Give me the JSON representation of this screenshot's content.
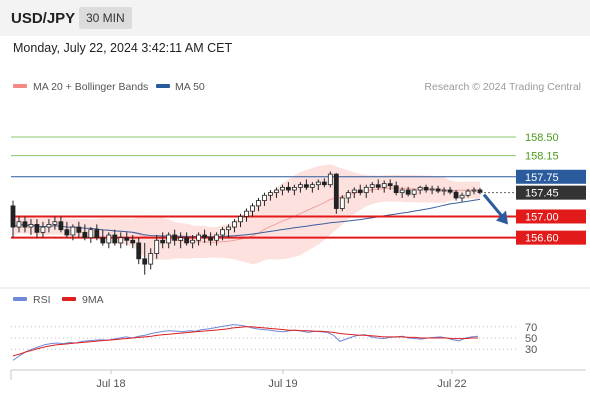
{
  "header": {
    "pair": "USD/JPY",
    "timeframe": "30 MIN"
  },
  "datetime": "Monday, July 22, 2024 3:42:11 AM CET",
  "legend": [
    {
      "label": "MA 20 + Bollinger Bands",
      "color": "#f28a82"
    },
    {
      "label": "MA 50",
      "color": "#2a5b9c"
    }
  ],
  "copyright": "Research © 2024 Trading Central",
  "colors": {
    "bollinger_fill": "#fde1df",
    "ma20": "#f0a29c",
    "ma50": "#3a5f9b",
    "target_line": "#8cc76a",
    "target_text": "#4f9a1e",
    "pivot": "#2a5b9c",
    "support": "#e21a1a",
    "arrow": "#2a5b9c",
    "candle": "#222222",
    "rsi": "#6f88d8",
    "rsi_ma": "#dd1f1f",
    "current_price_bg": "#333333"
  },
  "chart_data": [
    {
      "type": "candlestick",
      "title": "USD/JPY",
      "timeframe": "30 MIN",
      "ylim": [
        155.8,
        159.2
      ],
      "x_ticks": [
        "Jul 18",
        "Jul 19",
        "Jul 22"
      ],
      "current_price": "157.45",
      "levels": [
        {
          "name": "target2",
          "value": 158.5,
          "label": "158.50",
          "kind": "resistance"
        },
        {
          "name": "target1",
          "value": 158.15,
          "label": "158.15",
          "kind": "resistance"
        },
        {
          "name": "pivot",
          "value": 157.75,
          "label": "157.75",
          "kind": "pivot"
        },
        {
          "name": "support1",
          "value": 157.0,
          "label": "157.00",
          "kind": "support"
        },
        {
          "name": "support2",
          "value": 156.6,
          "label": "156.60",
          "kind": "support"
        }
      ],
      "series": [
        {
          "name": "MA 20 + Bollinger Bands"
        },
        {
          "name": "MA 50"
        }
      ],
      "ohlc": [
        [
          157.2,
          157.3,
          156.6,
          156.8
        ],
        [
          156.8,
          157.0,
          156.7,
          156.9
        ],
        [
          156.9,
          157.0,
          156.7,
          156.8
        ],
        [
          156.8,
          156.95,
          156.65,
          156.85
        ],
        [
          156.85,
          156.95,
          156.6,
          156.7
        ],
        [
          156.7,
          156.9,
          156.6,
          156.8
        ],
        [
          156.8,
          156.95,
          156.7,
          156.85
        ],
        [
          156.85,
          157.0,
          156.75,
          156.9
        ],
        [
          156.9,
          157.0,
          156.7,
          156.75
        ],
        [
          156.75,
          156.9,
          156.6,
          156.65
        ],
        [
          156.65,
          156.85,
          156.55,
          156.8
        ],
        [
          156.8,
          156.9,
          156.6,
          156.7
        ],
        [
          156.7,
          156.85,
          156.55,
          156.6
        ],
        [
          156.6,
          156.8,
          156.5,
          156.75
        ],
        [
          156.75,
          156.85,
          156.55,
          156.6
        ],
        [
          156.6,
          156.75,
          156.45,
          156.5
        ],
        [
          156.5,
          156.7,
          156.4,
          156.65
        ],
        [
          156.65,
          156.75,
          156.45,
          156.5
        ],
        [
          156.5,
          156.7,
          156.4,
          156.6
        ],
        [
          156.6,
          156.7,
          156.45,
          156.55
        ],
        [
          156.55,
          156.65,
          156.4,
          156.5
        ],
        [
          156.5,
          156.6,
          156.1,
          156.2
        ],
        [
          156.2,
          156.5,
          155.9,
          156.1
        ],
        [
          156.1,
          156.4,
          156.0,
          156.3
        ],
        [
          156.3,
          156.65,
          156.2,
          156.55
        ],
        [
          156.55,
          156.7,
          156.4,
          156.5
        ],
        [
          156.5,
          156.7,
          156.4,
          156.65
        ],
        [
          156.65,
          156.75,
          156.45,
          156.55
        ],
        [
          156.55,
          156.7,
          156.4,
          156.6
        ],
        [
          156.6,
          156.7,
          156.45,
          156.5
        ],
        [
          156.5,
          156.65,
          156.4,
          156.55
        ],
        [
          156.55,
          156.7,
          156.45,
          156.65
        ],
        [
          156.65,
          156.75,
          156.5,
          156.6
        ],
        [
          156.6,
          156.7,
          156.45,
          156.55
        ],
        [
          156.55,
          156.7,
          156.45,
          156.65
        ],
        [
          156.65,
          156.8,
          156.55,
          156.75
        ],
        [
          156.75,
          156.85,
          156.6,
          156.8
        ],
        [
          156.8,
          156.95,
          156.7,
          156.9
        ],
        [
          156.9,
          157.05,
          156.8,
          157.0
        ],
        [
          157.0,
          157.15,
          156.9,
          157.1
        ],
        [
          157.1,
          157.25,
          157.0,
          157.2
        ],
        [
          157.2,
          157.35,
          157.1,
          157.3
        ],
        [
          157.3,
          157.45,
          157.2,
          157.4
        ],
        [
          157.4,
          157.5,
          157.3,
          157.45
        ],
        [
          157.45,
          157.55,
          157.35,
          157.5
        ],
        [
          157.5,
          157.6,
          157.4,
          157.55
        ],
        [
          157.55,
          157.65,
          157.45,
          157.5
        ],
        [
          157.5,
          157.6,
          157.4,
          157.55
        ],
        [
          157.55,
          157.65,
          157.45,
          157.6
        ],
        [
          157.6,
          157.7,
          157.5,
          157.55
        ],
        [
          157.55,
          157.65,
          157.45,
          157.6
        ],
        [
          157.6,
          157.7,
          157.5,
          157.65
        ],
        [
          157.65,
          157.72,
          157.55,
          157.6
        ],
        [
          157.6,
          157.85,
          157.55,
          157.8
        ],
        [
          157.8,
          157.82,
          157.05,
          157.15
        ],
        [
          157.15,
          157.4,
          157.1,
          157.35
        ],
        [
          157.35,
          157.5,
          157.25,
          157.45
        ],
        [
          157.45,
          157.55,
          157.35,
          157.5
        ],
        [
          157.5,
          157.6,
          157.4,
          157.45
        ],
        [
          157.45,
          157.6,
          157.35,
          157.55
        ],
        [
          157.55,
          157.65,
          157.45,
          157.6
        ],
        [
          157.6,
          157.7,
          157.5,
          157.55
        ],
        [
          157.55,
          157.68,
          157.45,
          157.62
        ],
        [
          157.62,
          157.7,
          157.5,
          157.58
        ],
        [
          157.58,
          157.66,
          157.4,
          157.45
        ],
        [
          157.45,
          157.55,
          157.35,
          157.5
        ],
        [
          157.5,
          157.56,
          157.38,
          157.42
        ],
        [
          157.42,
          157.52,
          157.35,
          157.5
        ],
        [
          157.5,
          157.58,
          157.42,
          157.55
        ],
        [
          157.55,
          157.6,
          157.45,
          157.5
        ],
        [
          157.5,
          157.58,
          157.42,
          157.52
        ],
        [
          157.52,
          157.58,
          157.44,
          157.48
        ],
        [
          157.48,
          157.55,
          157.4,
          157.5
        ],
        [
          157.5,
          157.56,
          157.42,
          157.46
        ],
        [
          157.46,
          157.5,
          157.3,
          157.35
        ],
        [
          157.35,
          157.45,
          157.28,
          157.4
        ],
        [
          157.4,
          157.52,
          157.36,
          157.48
        ],
        [
          157.48,
          157.55,
          157.42,
          157.5
        ],
        [
          157.5,
          157.54,
          157.42,
          157.45
        ]
      ]
    },
    {
      "type": "line",
      "title": "RSI",
      "ylim": [
        0,
        100
      ],
      "y_ticks": [
        70,
        50,
        30
      ],
      "series": [
        {
          "name": "RSI",
          "values": [
            10,
            18,
            25,
            30,
            34,
            38,
            40,
            41,
            40,
            42,
            41,
            44,
            45,
            46,
            47,
            46,
            48,
            50,
            52,
            50,
            53,
            55,
            58,
            60,
            62,
            63,
            62,
            61,
            63,
            62,
            65,
            66,
            68,
            70,
            72,
            74,
            73,
            71,
            68,
            66,
            65,
            64,
            62,
            61,
            63,
            64,
            62,
            60,
            62,
            61,
            60,
            55,
            44,
            48,
            52,
            55,
            56,
            52,
            50,
            49,
            51,
            52,
            53,
            50,
            49,
            48,
            50,
            51,
            52,
            50,
            47,
            45,
            50,
            52,
            53
          ]
        },
        {
          "name": "9MA",
          "values": [
            18,
            21,
            25,
            28,
            31,
            34,
            36,
            38,
            39,
            40,
            41,
            42,
            43,
            44,
            45,
            46,
            47,
            48,
            49,
            50,
            51,
            52,
            53,
            55,
            56,
            57,
            58,
            59,
            60,
            61,
            62,
            63,
            64,
            65,
            66,
            68,
            69,
            70,
            70,
            69,
            68,
            67,
            66,
            65,
            64,
            64,
            63,
            63,
            62,
            62,
            61,
            60,
            58,
            57,
            56,
            55,
            55,
            54,
            53,
            52,
            52,
            52,
            52,
            51,
            51,
            50,
            50,
            50,
            50,
            50,
            49,
            49,
            49,
            50,
            50
          ]
        }
      ]
    }
  ]
}
